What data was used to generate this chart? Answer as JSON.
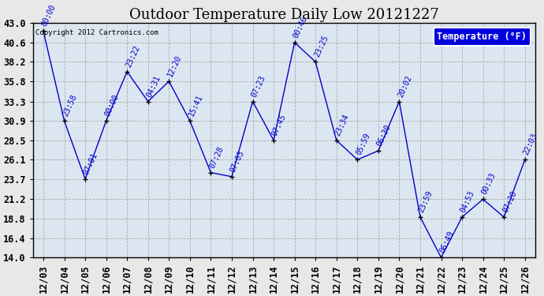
{
  "title": "Outdoor Temperature Daily Low 20121227",
  "copyright": "Copyright 2012 Cartronics.com",
  "legend_label": "Temperature (°F)",
  "x_labels": [
    "12/03",
    "12/04",
    "12/05",
    "12/06",
    "12/07",
    "12/08",
    "12/09",
    "12/10",
    "12/11",
    "12/12",
    "12/13",
    "12/14",
    "12/15",
    "12/16",
    "12/17",
    "12/18",
    "12/19",
    "12/20",
    "12/21",
    "12/22",
    "12/23",
    "12/24",
    "12/25",
    "12/26"
  ],
  "temperatures": [
    42.0,
    30.9,
    23.7,
    30.9,
    37.0,
    33.3,
    35.8,
    30.9,
    24.5,
    24.0,
    33.3,
    28.5,
    40.6,
    38.2,
    28.5,
    26.1,
    27.2,
    33.3,
    19.0,
    14.0,
    19.0,
    21.2,
    19.0,
    26.1
  ],
  "time_labels": [
    "00:00",
    "23:58",
    "07:01",
    "00:00",
    "23:22",
    "04:31",
    "12:20",
    "15:41",
    "07:28",
    "07:03",
    "07:23",
    "07:45",
    "00:46",
    "23:25",
    "23:34",
    "05:59",
    "06:30",
    "20:02",
    "23:59",
    "06:49",
    "04:53",
    "00:33",
    "07:20",
    "22:03"
  ],
  "y_ticks": [
    14.0,
    16.4,
    18.8,
    21.2,
    23.7,
    26.1,
    28.5,
    30.9,
    33.3,
    35.8,
    38.2,
    40.6,
    43.0
  ],
  "ylim": [
    14.0,
    43.0
  ],
  "line_color": "#0000CC",
  "marker_color": "#000000",
  "plot_bg_color": "#dce6f0",
  "grid_color": "#aaaaaa",
  "title_fontsize": 13,
  "label_fontsize": 7,
  "tick_fontsize": 8.5
}
